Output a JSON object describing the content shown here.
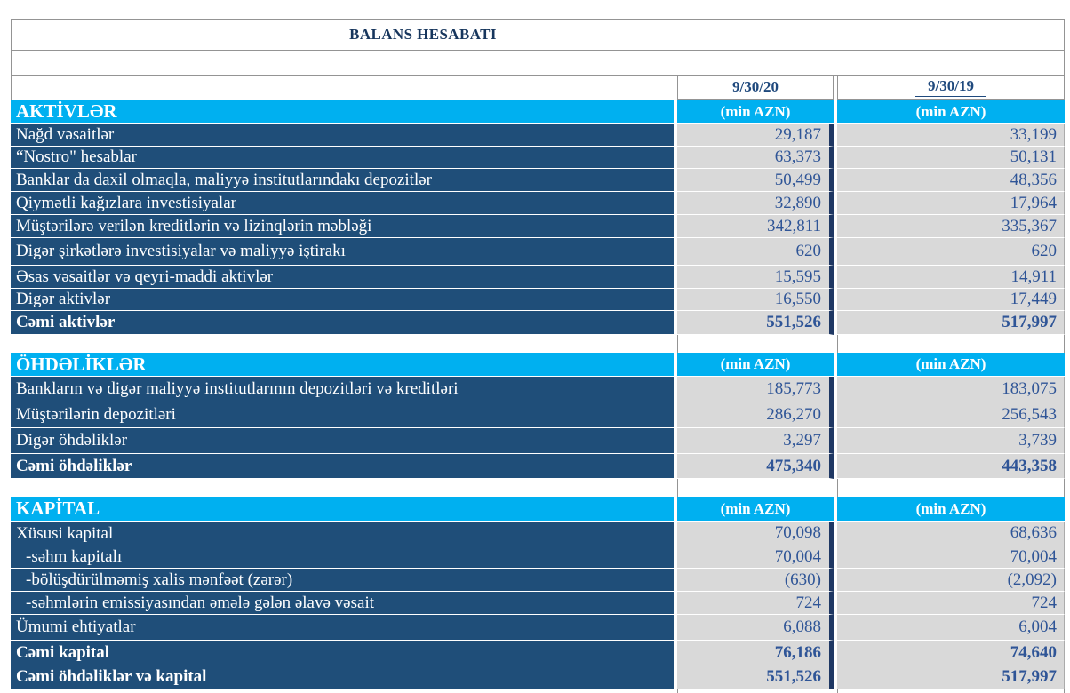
{
  "title": "BALANS HESABATI",
  "columns": {
    "col_2020": "9/30/20",
    "col_2019": "9/30/19"
  },
  "unit_label": "(min AZN)",
  "colors": {
    "section_header_cyan": "#00B0F0",
    "row_label_navy": "#1F4E79",
    "divider_bar_navy": "#1F3864",
    "value_cell_gray": "#D9D9D9",
    "number_text_blue": "#2F5597",
    "title_text_navy": "#17365D"
  },
  "sections": [
    {
      "header": "AKTİVLƏR",
      "rows": [
        {
          "label": "Nağd vəsaitlər",
          "v2020": "29,187",
          "v2019": "33,199"
        },
        {
          "label": "“Nostro\" hesablar",
          "v2020": "63,373",
          "v2019": "50,131"
        },
        {
          "label": "Banklar da daxil olmaqla, maliyyə institutlarındakı depozitlər",
          "v2020": "50,499",
          "v2019": "48,356"
        },
        {
          "label": "Qiymətli kağızlara investisiyalar",
          "v2020": "32,890",
          "v2019": "17,964"
        },
        {
          "label": "Müştərilərə verilən kreditlərin və lizinqlərin məbləği",
          "v2020": "342,811",
          "v2019": "335,367"
        },
        {
          "label": "Digər  şirkətlərə  investisiyalar və maliyyə iştirakı",
          "v2020": "620",
          "v2019": "620"
        },
        {
          "label": "Əsas vəsaitlər və qeyri-maddi aktivlər",
          "v2020": "15,595",
          "v2019": "14,911"
        },
        {
          "label": "Digər aktivlər",
          "v2020": "16,550",
          "v2019": "17,449"
        },
        {
          "label": "Cəmi aktivlər",
          "v2020": "551,526",
          "v2019": "517,997"
        }
      ]
    },
    {
      "header": "ÖHDƏLİKLƏR",
      "rows": [
        {
          "label": "Bankların və digər maliyyə institutlarının depozitləri və kreditləri",
          "v2020": "185,773",
          "v2019": "183,075"
        },
        {
          "label": "Müştərilərin depozitləri",
          "v2020": "286,270",
          "v2019": "256,543"
        },
        {
          "label": "Digər öhdəliklər",
          "v2020": "3,297",
          "v2019": "3,739"
        },
        {
          "label": "Cəmi öhdəliklər",
          "v2020": "475,340",
          "v2019": "443,358"
        }
      ]
    },
    {
      "header": "KAPİTAL",
      "rows": [
        {
          "label": "Xüsusi kapital",
          "v2020": "70,098",
          "v2019": "68,636"
        },
        {
          "label": "-səhm kapitalı",
          "v2020": "70,004",
          "v2019": "70,004"
        },
        {
          "label": "-bölüşdürülməmiş xalis mənfəət (zərər)",
          "v2020": "(630)",
          "v2019": "(2,092)"
        },
        {
          "label": "-səhmlərin emissiyasından əmələ gələn əlavə vəsait",
          "v2020": "724",
          "v2019": "724"
        },
        {
          "label": "Ümumi ehtiyatlar",
          "v2020": "6,088",
          "v2019": "6,004"
        },
        {
          "label": "Cəmi kapital",
          "v2020": "76,186",
          "v2019": "74,640"
        },
        {
          "label": "Cəmi öhdəliklər və kapital",
          "v2020": "551,526",
          "v2019": "517,997"
        }
      ]
    }
  ]
}
